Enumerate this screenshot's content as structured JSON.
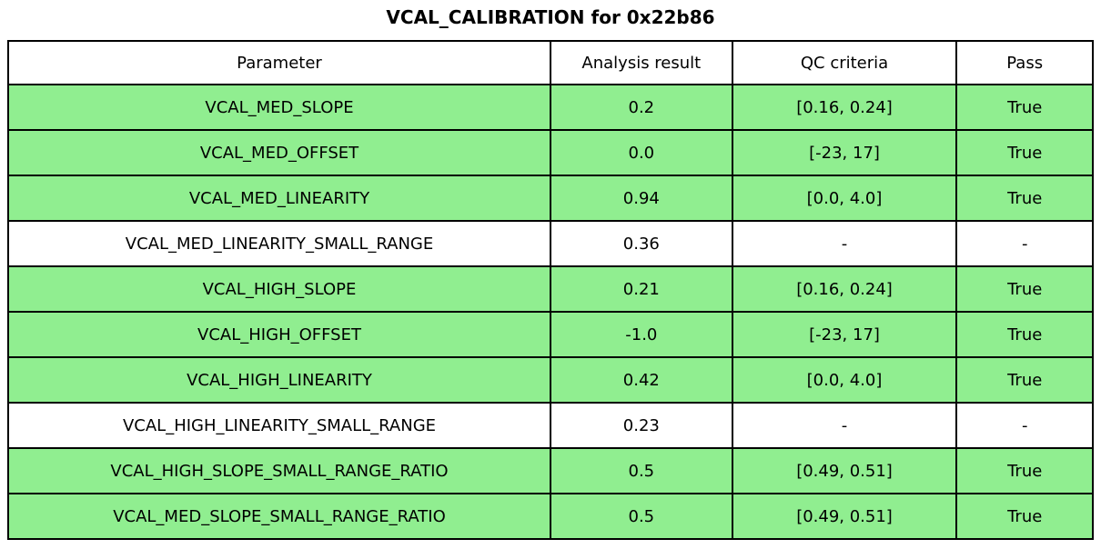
{
  "title": "VCAL_CALIBRATION for 0x22b86",
  "chart_data": {
    "type": "table",
    "title": "VCAL_CALIBRATION for 0x22b86",
    "columns": [
      "Parameter",
      "Analysis result",
      "QC criteria",
      "Pass"
    ],
    "rows": [
      {
        "parameter": "VCAL_MED_SLOPE",
        "analysis_result": "0.2",
        "qc_criteria": "[0.16, 0.24]",
        "pass": "True",
        "highlight": true
      },
      {
        "parameter": "VCAL_MED_OFFSET",
        "analysis_result": "0.0",
        "qc_criteria": "[-23, 17]",
        "pass": "True",
        "highlight": true
      },
      {
        "parameter": "VCAL_MED_LINEARITY",
        "analysis_result": "0.94",
        "qc_criteria": "[0.0, 4.0]",
        "pass": "True",
        "highlight": true
      },
      {
        "parameter": "VCAL_MED_LINEARITY_SMALL_RANGE",
        "analysis_result": "0.36",
        "qc_criteria": "-",
        "pass": "-",
        "highlight": false
      },
      {
        "parameter": "VCAL_HIGH_SLOPE",
        "analysis_result": "0.21",
        "qc_criteria": "[0.16, 0.24]",
        "pass": "True",
        "highlight": true
      },
      {
        "parameter": "VCAL_HIGH_OFFSET",
        "analysis_result": "-1.0",
        "qc_criteria": "[-23, 17]",
        "pass": "True",
        "highlight": true
      },
      {
        "parameter": "VCAL_HIGH_LINEARITY",
        "analysis_result": "0.42",
        "qc_criteria": "[0.0, 4.0]",
        "pass": "True",
        "highlight": true
      },
      {
        "parameter": "VCAL_HIGH_LINEARITY_SMALL_RANGE",
        "analysis_result": "0.23",
        "qc_criteria": "-",
        "pass": "-",
        "highlight": false
      },
      {
        "parameter": "VCAL_HIGH_SLOPE_SMALL_RANGE_RATIO",
        "analysis_result": "0.5",
        "qc_criteria": "[0.49, 0.51]",
        "pass": "True",
        "highlight": true
      },
      {
        "parameter": "VCAL_MED_SLOPE_SMALL_RANGE_RATIO",
        "analysis_result": "0.5",
        "qc_criteria": "[0.49, 0.51]",
        "pass": "True",
        "highlight": true
      }
    ],
    "layout": {
      "highlight_meaning": "row passes QC",
      "grid": true,
      "cell_text_align": "center"
    }
  },
  "colors": {
    "pass_green": "#90EE90",
    "border": "#000000",
    "background": "#FFFFFF",
    "text": "#000000"
  }
}
